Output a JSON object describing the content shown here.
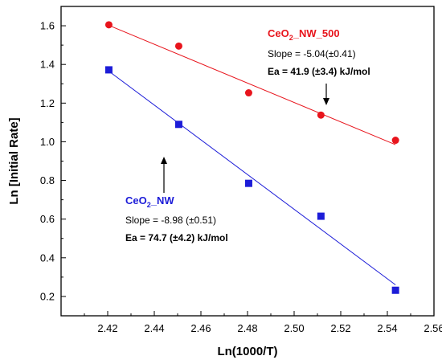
{
  "chart_data": {
    "type": "scatter",
    "title": "",
    "xlabel": "Ln(1000/T)",
    "ylabel": "Ln [Initial Rate]",
    "xlim": [
      2.4,
      2.56
    ],
    "ylim": [
      0.1,
      1.7
    ],
    "xticks": [
      "2.42",
      "2.44",
      "2.46",
      "2.48",
      "2.50",
      "2.52",
      "2.54",
      "2.56"
    ],
    "yticks": [
      "0.2",
      "0.4",
      "0.6",
      "0.8",
      "1.0",
      "1.2",
      "1.4",
      "1.6"
    ],
    "grid": false,
    "series": [
      {
        "name": "CeO2_NW_500",
        "name_main": "CeO",
        "name_sub": "2",
        "name_rest": "_NW_500",
        "color": "#e8141c",
        "marker": "circle",
        "x": [
          2.4205,
          2.4505,
          2.4805,
          2.5115,
          2.5435
        ],
        "y": [
          1.605,
          1.495,
          1.253,
          1.138,
          1.008
        ],
        "fit": {
          "x": [
            2.4205,
            2.5435
          ],
          "y": [
            1.602,
            0.985
          ]
        },
        "slope_label": "Slope = -5.04(±0.41)",
        "ea_label": "Ea = 41.9 (±3.4) kJ/mol"
      },
      {
        "name": "CeO2_NW",
        "name_main": "CeO",
        "name_sub": "2",
        "name_rest": "_NW",
        "color": "#1c1cd8",
        "marker": "square",
        "x": [
          2.4205,
          2.4505,
          2.4805,
          2.5115,
          2.5435
        ],
        "y": [
          1.372,
          1.09,
          0.785,
          0.615,
          0.232
        ],
        "fit": {
          "x": [
            2.4205,
            2.5435
          ],
          "y": [
            1.365,
            0.26
          ]
        },
        "slope_label": "Slope = -8.98 (±0.51)",
        "ea_label": "Ea = 74.7 (±4.2) kJ/mol"
      }
    ]
  }
}
